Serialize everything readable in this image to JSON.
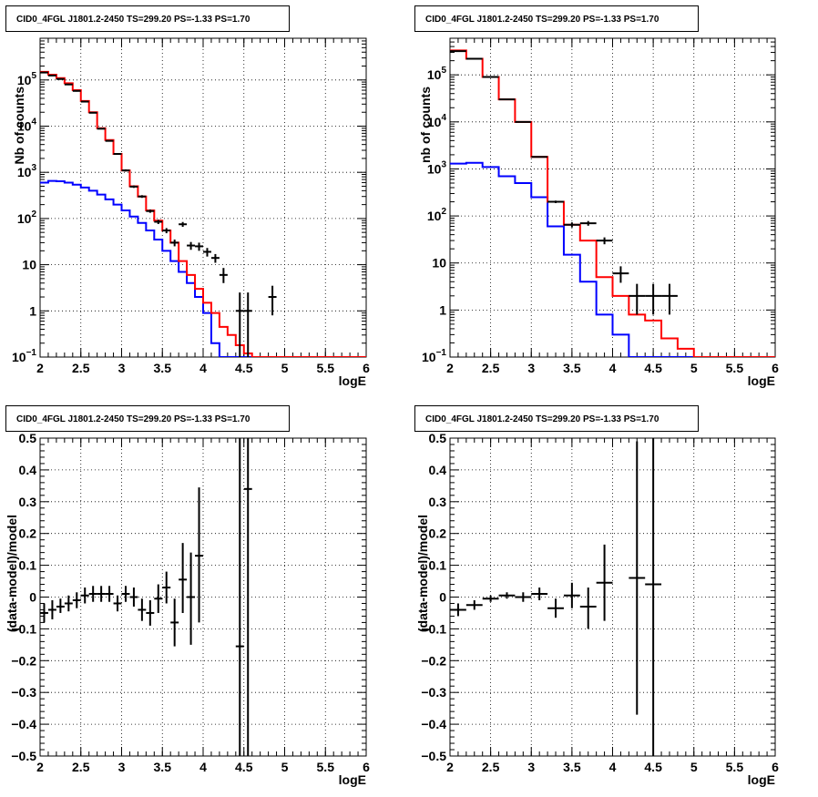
{
  "colors": {
    "total_model": "#ff0000",
    "source_model": "#0000ff",
    "data_points": "#000000"
  },
  "chart_data": [
    {
      "type": "step-histogram",
      "title": "CID0_4FGL J1801.2-2450 TS=299.20 PS=-1.33 PS=1.70",
      "xlabel": "logE",
      "ylabel": "Nb of counts",
      "xlim": [
        2,
        6
      ],
      "ylim": [
        0.1,
        800000
      ],
      "ylog": true,
      "grid": true,
      "xticks": [
        "2",
        "2.5",
        "3",
        "3.5",
        "4",
        "4.5",
        "5",
        "5.5",
        "6"
      ],
      "yticks": [
        {
          "v": 0.1,
          "base": "10",
          "exp": "−1"
        },
        {
          "v": 1,
          "label": "1"
        },
        {
          "v": 10,
          "label": "10"
        },
        {
          "v": 100,
          "base": "10",
          "exp": "2"
        },
        {
          "v": 1000,
          "base": "10",
          "exp": "3"
        },
        {
          "v": 10000,
          "base": "10",
          "exp": "4"
        },
        {
          "v": 100000,
          "base": "10",
          "exp": "5"
        }
      ],
      "bin_width": 0.1,
      "series": [
        {
          "color": "red",
          "bins_start": 2.0,
          "values": [
            150000,
            130000,
            110000,
            85000,
            60000,
            35000,
            20000,
            9000,
            5000,
            2500,
            1100,
            500,
            300,
            150,
            90,
            55,
            30,
            12,
            6,
            3,
            1.5,
            0.9,
            0.45,
            0.3,
            0.18,
            0.12,
            0.1,
            0.1,
            0.1,
            0.1,
            0.1,
            0.1,
            0.1,
            0.1,
            0.1,
            0.1,
            0.1,
            0.1,
            0.1,
            0.1
          ]
        },
        {
          "color": "blue",
          "bins_start": 2.0,
          "values": [
            600,
            650,
            640,
            600,
            540,
            470,
            400,
            330,
            260,
            200,
            150,
            110,
            80,
            55,
            35,
            20,
            12,
            7,
            4,
            2,
            0.9,
            0.2,
            0.1,
            0.1,
            0.1,
            0.1,
            0.1,
            0.1,
            0.1,
            0.1,
            0.1,
            0.1,
            0.1,
            0.1,
            0.1,
            0.1,
            0.1,
            0.1,
            0.1,
            0.1
          ]
        }
      ],
      "points": [
        {
          "x": 2.05,
          "y": 145000,
          "lo": 140000,
          "hi": 150000
        },
        {
          "x": 2.15,
          "y": 125000,
          "lo": 121000,
          "hi": 129000
        },
        {
          "x": 2.25,
          "y": 105000,
          "lo": 101000,
          "hi": 109000
        },
        {
          "x": 2.35,
          "y": 80000,
          "lo": 77000,
          "hi": 83000
        },
        {
          "x": 2.45,
          "y": 58000,
          "lo": 56000,
          "hi": 60000
        },
        {
          "x": 2.55,
          "y": 34000,
          "lo": 33000,
          "hi": 35000
        },
        {
          "x": 2.65,
          "y": 19500,
          "lo": 19000,
          "hi": 20000
        },
        {
          "x": 2.75,
          "y": 8800,
          "lo": 8600,
          "hi": 9000
        },
        {
          "x": 2.85,
          "y": 4800,
          "lo": 4650,
          "hi": 4950
        },
        {
          "x": 2.95,
          "y": 2500,
          "lo": 2400,
          "hi": 2600
        },
        {
          "x": 3.05,
          "y": 1100,
          "lo": 1040,
          "hi": 1160
        },
        {
          "x": 3.15,
          "y": 490,
          "lo": 460,
          "hi": 520
        },
        {
          "x": 3.25,
          "y": 300,
          "lo": 280,
          "hi": 320
        },
        {
          "x": 3.35,
          "y": 145,
          "lo": 133,
          "hi": 157
        },
        {
          "x": 3.45,
          "y": 85,
          "lo": 76,
          "hi": 94
        },
        {
          "x": 3.55,
          "y": 55,
          "lo": 48,
          "hi": 62
        },
        {
          "x": 3.65,
          "y": 30,
          "lo": 25,
          "hi": 35
        },
        {
          "x": 3.75,
          "y": 75,
          "lo": 66,
          "hi": 84
        },
        {
          "x": 3.85,
          "y": 26,
          "lo": 21,
          "hi": 31
        },
        {
          "x": 3.95,
          "y": 25,
          "lo": 20,
          "hi": 30
        },
        {
          "x": 4.05,
          "y": 19,
          "lo": 15,
          "hi": 23
        },
        {
          "x": 4.15,
          "y": 14,
          "lo": 11,
          "hi": 17
        },
        {
          "x": 4.25,
          "y": 6,
          "lo": 4,
          "hi": 8.5
        },
        {
          "x": 4.45,
          "y": 1,
          "lo": 0.1,
          "hi": 2.5
        },
        {
          "x": 4.55,
          "y": 1,
          "lo": 0.1,
          "hi": 2.5
        },
        {
          "x": 4.85,
          "y": 2,
          "lo": 0.8,
          "hi": 3.5
        }
      ]
    },
    {
      "type": "step-histogram",
      "title": "CID0_4FGL J1801.2-2450 TS=299.20 PS=-1.33 PS=1.70",
      "xlabel": "logE",
      "ylabel": "nb of counts",
      "xlim": [
        2,
        6
      ],
      "ylim": [
        0.1,
        600000
      ],
      "ylog": true,
      "grid": true,
      "xticks": [
        "2",
        "2.5",
        "3",
        "3.5",
        "4",
        "4.5",
        "5",
        "5.5",
        "6"
      ],
      "yticks": [
        {
          "v": 0.1,
          "base": "10",
          "exp": "−1"
        },
        {
          "v": 1,
          "label": "1"
        },
        {
          "v": 10,
          "label": "10"
        },
        {
          "v": 100,
          "base": "10",
          "exp": "2"
        },
        {
          "v": 1000,
          "base": "10",
          "exp": "3"
        },
        {
          "v": 10000,
          "base": "10",
          "exp": "4"
        },
        {
          "v": 100000,
          "base": "10",
          "exp": "5"
        }
      ],
      "bin_width": 0.2,
      "series": [
        {
          "color": "red",
          "bins_start": 2.0,
          "values": [
            330000,
            220000,
            90000,
            30000,
            10000,
            1800,
            200,
            65,
            30,
            5,
            2,
            0.8,
            0.6,
            0.25,
            0.15,
            0.1,
            0.1,
            0.1,
            0.1,
            0.1
          ]
        },
        {
          "color": "blue",
          "bins_start": 2.0,
          "values": [
            1300,
            1350,
            1100,
            700,
            500,
            250,
            60,
            15,
            4,
            0.8,
            0.3,
            0.1,
            0.1,
            0.1,
            0.1,
            0.1,
            0.1,
            0.1,
            0.1,
            0.1
          ]
        }
      ],
      "points": [
        {
          "x": 2.1,
          "y": 320000,
          "lo": 315000,
          "hi": 325000
        },
        {
          "x": 2.3,
          "y": 220000,
          "lo": 216000,
          "hi": 224000
        },
        {
          "x": 2.5,
          "y": 90000,
          "lo": 88000,
          "hi": 92000
        },
        {
          "x": 2.7,
          "y": 30000,
          "lo": 29500,
          "hi": 30500
        },
        {
          "x": 2.9,
          "y": 10000,
          "lo": 9800,
          "hi": 10200
        },
        {
          "x": 3.1,
          "y": 1800,
          "lo": 1750,
          "hi": 1850
        },
        {
          "x": 3.3,
          "y": 200,
          "lo": 188,
          "hi": 212
        },
        {
          "x": 3.5,
          "y": 65,
          "lo": 57,
          "hi": 73
        },
        {
          "x": 3.7,
          "y": 70,
          "lo": 62,
          "hi": 78
        },
        {
          "x": 3.9,
          "y": 30,
          "lo": 25,
          "hi": 35
        },
        {
          "x": 4.1,
          "y": 6,
          "lo": 3.8,
          "hi": 8.5
        },
        {
          "x": 4.3,
          "y": 2,
          "lo": 0.8,
          "hi": 3.6
        },
        {
          "x": 4.5,
          "y": 2,
          "lo": 0.8,
          "hi": 3.6
        },
        {
          "x": 4.7,
          "y": 2,
          "lo": 0.8,
          "hi": 3.6
        }
      ]
    },
    {
      "type": "scatter-errorbar",
      "title": "CID0_4FGL J1801.2-2450 TS=299.20 PS=-1.33 PS=1.70",
      "xlabel": "logE",
      "ylabel": "(data-model)/model",
      "xlim": [
        2,
        6
      ],
      "ylim": [
        -0.5,
        0.5
      ],
      "grid": true,
      "xticks": [
        "2",
        "2.5",
        "3",
        "3.5",
        "4",
        "4.5",
        "5",
        "5.5",
        "6"
      ],
      "ytick_values": [
        -0.5,
        -0.4,
        -0.3,
        -0.2,
        -0.1,
        0,
        0.1,
        0.2,
        0.3,
        0.4,
        0.5
      ],
      "ytick_labels": [
        "−0.5",
        "−0.4",
        "−0.3",
        "−0.2",
        "−0.1",
        "0",
        "0.1",
        "0.2",
        "0.3",
        "0.4",
        "0.5"
      ],
      "x_half_width": 0.05,
      "points": [
        {
          "x": 2.05,
          "y": -0.05,
          "lo": -0.08,
          "hi": -0.02
        },
        {
          "x": 2.15,
          "y": -0.04,
          "lo": -0.07,
          "hi": -0.01
        },
        {
          "x": 2.25,
          "y": -0.03,
          "lo": -0.05,
          "hi": -0.005
        },
        {
          "x": 2.35,
          "y": -0.02,
          "lo": -0.045,
          "hi": 0.005
        },
        {
          "x": 2.45,
          "y": -0.01,
          "lo": -0.035,
          "hi": 0.015
        },
        {
          "x": 2.55,
          "y": 0.005,
          "lo": -0.02,
          "hi": 0.03
        },
        {
          "x": 2.65,
          "y": 0.01,
          "lo": -0.015,
          "hi": 0.035
        },
        {
          "x": 2.75,
          "y": 0.01,
          "lo": -0.015,
          "hi": 0.035
        },
        {
          "x": 2.85,
          "y": 0.01,
          "lo": -0.015,
          "hi": 0.035
        },
        {
          "x": 2.95,
          "y": -0.02,
          "lo": -0.045,
          "hi": 0.005
        },
        {
          "x": 3.05,
          "y": 0.01,
          "lo": -0.015,
          "hi": 0.035
        },
        {
          "x": 3.15,
          "y": 0.0,
          "lo": -0.03,
          "hi": 0.03
        },
        {
          "x": 3.25,
          "y": -0.04,
          "lo": -0.075,
          "hi": -0.005
        },
        {
          "x": 3.35,
          "y": -0.05,
          "lo": -0.09,
          "hi": -0.01
        },
        {
          "x": 3.45,
          "y": -0.005,
          "lo": -0.05,
          "hi": 0.04
        },
        {
          "x": 3.55,
          "y": 0.03,
          "lo": -0.02,
          "hi": 0.08
        },
        {
          "x": 3.65,
          "y": -0.08,
          "lo": -0.155,
          "hi": -0.005
        },
        {
          "x": 3.75,
          "y": 0.055,
          "lo": -0.05,
          "hi": 0.17
        },
        {
          "x": 3.85,
          "y": 0.0,
          "lo": -0.15,
          "hi": 0.14
        },
        {
          "x": 3.95,
          "y": 0.13,
          "lo": -0.08,
          "hi": 0.345
        },
        {
          "x": 4.45,
          "y": -0.155,
          "lo": -0.5,
          "hi": 0.5
        },
        {
          "x": 4.55,
          "y": 0.34,
          "lo": -0.5,
          "hi": 0.5
        }
      ]
    },
    {
      "type": "scatter-errorbar",
      "title": "CID0_4FGL J1801.2-2450 TS=299.20 PS=-1.33 PS=1.70",
      "xlabel": "logE",
      "ylabel": "(data-model)/model",
      "xlim": [
        2,
        6
      ],
      "ylim": [
        -0.5,
        0.5
      ],
      "grid": true,
      "xticks": [
        "2",
        "2.5",
        "3",
        "3.5",
        "4",
        "4.5",
        "5",
        "5.5",
        "6"
      ],
      "ytick_values": [
        -0.5,
        -0.4,
        -0.3,
        -0.2,
        -0.1,
        0,
        0.1,
        0.2,
        0.3,
        0.4,
        0.5
      ],
      "ytick_labels": [
        "−0.5",
        "−0.4",
        "−0.3",
        "−0.2",
        "−0.1",
        "0",
        "0.1",
        "0.2",
        "0.3",
        "0.4",
        "0.5"
      ],
      "x_half_width": 0.1,
      "points": [
        {
          "x": 2.1,
          "y": -0.04,
          "lo": -0.06,
          "hi": -0.02
        },
        {
          "x": 2.3,
          "y": -0.025,
          "lo": -0.04,
          "hi": -0.01
        },
        {
          "x": 2.5,
          "y": -0.005,
          "lo": -0.015,
          "hi": 0.005
        },
        {
          "x": 2.7,
          "y": 0.005,
          "lo": -0.005,
          "hi": 0.015
        },
        {
          "x": 2.9,
          "y": 0.0,
          "lo": -0.015,
          "hi": 0.015
        },
        {
          "x": 3.1,
          "y": 0.01,
          "lo": -0.01,
          "hi": 0.03
        },
        {
          "x": 3.3,
          "y": -0.035,
          "lo": -0.065,
          "hi": -0.005
        },
        {
          "x": 3.5,
          "y": 0.005,
          "lo": -0.035,
          "hi": 0.045
        },
        {
          "x": 3.7,
          "y": -0.03,
          "lo": -0.1,
          "hi": 0.03
        },
        {
          "x": 3.9,
          "y": 0.045,
          "lo": -0.075,
          "hi": 0.165
        },
        {
          "x": 4.3,
          "y": 0.06,
          "lo": -0.37,
          "hi": 0.49
        },
        {
          "x": 4.5,
          "y": 0.04,
          "lo": -0.5,
          "hi": 0.5
        }
      ]
    }
  ]
}
